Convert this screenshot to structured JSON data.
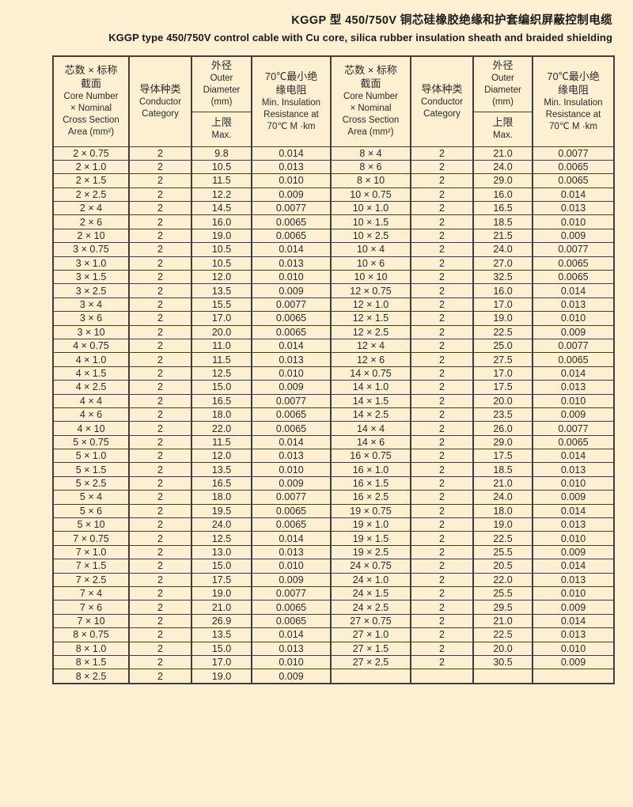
{
  "title": {
    "zh": "KGGP 型 450/750V 铜芯硅橡胶绝缘和护套编织屏蔽控制电缆",
    "en": "KGGP type 450/750V control cable with Cu core, silica rubber insulation sheath and braided shielding"
  },
  "table": {
    "headers": {
      "core": {
        "zh_line1": "芯数 × 标称",
        "zh_line2": "截面",
        "en_line1": "Core Number",
        "en_line2": "× Nominal",
        "en_line3": "Cross Section",
        "en_line4": "Area (mm²)"
      },
      "conductor": {
        "zh": "导体种类",
        "en_line1": "Conductor",
        "en_line2": "Category"
      },
      "diameter": {
        "zh": "外径",
        "en_line1": "Outer",
        "en_line2": "Diameter",
        "en_line3": "(mm)"
      },
      "limit": {
        "zh": "上限",
        "en": "Max."
      },
      "resistance": {
        "zh_line1": "70℃最小绝",
        "zh_line2": "缘电阻",
        "en_line1": "Min. Insulation",
        "en_line2": "Resistance at",
        "en_line3": "70℃ M ·km"
      }
    },
    "left_rows": [
      [
        "2 × 0.75",
        "2",
        "9.8",
        "0.014"
      ],
      [
        "2 × 1.0",
        "2",
        "10.5",
        "0.013"
      ],
      [
        "2 × 1.5",
        "2",
        "11.5",
        "0.010"
      ],
      [
        "2 × 2.5",
        "2",
        "12.2",
        "0.009"
      ],
      [
        "2 × 4",
        "2",
        "14.5",
        "0.0077"
      ],
      [
        "2 × 6",
        "2",
        "16.0",
        "0.0065"
      ],
      [
        "2 × 10",
        "2",
        "19.0",
        "0.0065"
      ],
      [
        "3 × 0.75",
        "2",
        "10.5",
        "0.014"
      ],
      [
        "3 × 1.0",
        "2",
        "10.5",
        "0.013"
      ],
      [
        "3 × 1.5",
        "2",
        "12.0",
        "0.010"
      ],
      [
        "3 × 2.5",
        "2",
        "13.5",
        "0.009"
      ],
      [
        "3 × 4",
        "2",
        "15.5",
        "0.0077"
      ],
      [
        "3 × 6",
        "2",
        "17.0",
        "0.0065"
      ],
      [
        "3 × 10",
        "2",
        "20.0",
        "0.0065"
      ],
      [
        "4 × 0.75",
        "2",
        "11.0",
        "0.014"
      ],
      [
        "4 × 1.0",
        "2",
        "11.5",
        "0.013"
      ],
      [
        "4 × 1.5",
        "2",
        "12.5",
        "0.010"
      ],
      [
        "4 × 2.5",
        "2",
        "15.0",
        "0.009"
      ],
      [
        "4 × 4",
        "2",
        "16.5",
        "0.0077"
      ],
      [
        "4 × 6",
        "2",
        "18.0",
        "0.0065"
      ],
      [
        "4 × 10",
        "2",
        "22.0",
        "0.0065"
      ],
      [
        "5 × 0.75",
        "2",
        "11.5",
        "0.014"
      ],
      [
        "5 × 1.0",
        "2",
        "12.0",
        "0.013"
      ],
      [
        "5 × 1.5",
        "2",
        "13.5",
        "0.010"
      ],
      [
        "5 × 2.5",
        "2",
        "16.5",
        "0.009"
      ],
      [
        "5 × 4",
        "2",
        "18.0",
        "0.0077"
      ],
      [
        "5 × 6",
        "2",
        "19.5",
        "0.0065"
      ],
      [
        "5 × 10",
        "2",
        "24.0",
        "0.0065"
      ],
      [
        "7 × 0.75",
        "2",
        "12.5",
        "0.014"
      ],
      [
        "7 × 1.0",
        "2",
        "13.0",
        "0.013"
      ],
      [
        "7 × 1.5",
        "2",
        "15.0",
        "0.010"
      ],
      [
        "7 × 2.5",
        "2",
        "17.5",
        "0.009"
      ],
      [
        "7 × 4",
        "2",
        "19.0",
        "0.0077"
      ],
      [
        "7 × 6",
        "2",
        "21.0",
        "0.0065"
      ],
      [
        "7 × 10",
        "2",
        "26.9",
        "0.0065"
      ],
      [
        "8 × 0.75",
        "2",
        "13.5",
        "0.014"
      ],
      [
        "8 × 1.0",
        "2",
        "15.0",
        "0.013"
      ],
      [
        "8 × 1.5",
        "2",
        "17.0",
        "0.010"
      ],
      [
        "8 × 2.5",
        "2",
        "19.0",
        "0.009"
      ]
    ],
    "right_rows": [
      [
        "8 × 4",
        "2",
        "21.0",
        "0.0077"
      ],
      [
        "8 × 6",
        "2",
        "24.0",
        "0.0065"
      ],
      [
        "8 × 10",
        "2",
        "29.0",
        "0.0065"
      ],
      [
        "10 × 0.75",
        "2",
        "16.0",
        "0.014"
      ],
      [
        "10 × 1.0",
        "2",
        "16.5",
        "0.013"
      ],
      [
        "10 × 1.5",
        "2",
        "18.5",
        "0.010"
      ],
      [
        "10 × 2.5",
        "2",
        "21.5",
        "0.009"
      ],
      [
        "10 × 4",
        "2",
        "24.0",
        "0.0077"
      ],
      [
        "10 × 6",
        "2",
        "27.0",
        "0.0065"
      ],
      [
        "10 × 10",
        "2",
        "32.5",
        "0.0065"
      ],
      [
        "12 × 0.75",
        "2",
        "16.0",
        "0.014"
      ],
      [
        "12 × 1.0",
        "2",
        "17.0",
        "0.013"
      ],
      [
        "12 × 1.5",
        "2",
        "19.0",
        "0.010"
      ],
      [
        "12 × 2.5",
        "2",
        "22.5",
        "0.009"
      ],
      [
        "12 × 4",
        "2",
        "25.0",
        "0.0077"
      ],
      [
        "12 × 6",
        "2",
        "27.5",
        "0.0065"
      ],
      [
        "14 × 0.75",
        "2",
        "17.0",
        "0.014"
      ],
      [
        "14 × 1.0",
        "2",
        "17.5",
        "0.013"
      ],
      [
        "14 × 1.5",
        "2",
        "20.0",
        "0.010"
      ],
      [
        "14 × 2.5",
        "2",
        "23.5",
        "0.009"
      ],
      [
        "14 × 4",
        "2",
        "26.0",
        "0.0077"
      ],
      [
        "14 × 6",
        "2",
        "29.0",
        "0.0065"
      ],
      [
        "16 × 0.75",
        "2",
        "17.5",
        "0.014"
      ],
      [
        "16 × 1.0",
        "2",
        "18.5",
        "0.013"
      ],
      [
        "16 × 1.5",
        "2",
        "21.0",
        "0.010"
      ],
      [
        "16 × 2.5",
        "2",
        "24.0",
        "0.009"
      ],
      [
        "19 × 0.75",
        "2",
        "18.0",
        "0.014"
      ],
      [
        "19 × 1.0",
        "2",
        "19.0",
        "0.013"
      ],
      [
        "19 × 1.5",
        "2",
        "22.5",
        "0.010"
      ],
      [
        "19 × 2.5",
        "2",
        "25.5",
        "0.009"
      ],
      [
        "24 × 0.75",
        "2",
        "20.5",
        "0.014"
      ],
      [
        "24 × 1.0",
        "2",
        "22.0",
        "0.013"
      ],
      [
        "24 × 1.5",
        "2",
        "25.5",
        "0.010"
      ],
      [
        "24 × 2.5",
        "2",
        "29.5",
        "0.009"
      ],
      [
        "27 × 0.75",
        "2",
        "21.0",
        "0.014"
      ],
      [
        "27 × 1.0",
        "2",
        "22.5",
        "0.013"
      ],
      [
        "27 × 1.5",
        "2",
        "20.0",
        "0.010"
      ],
      [
        "27 × 2.5",
        "2",
        "30.5",
        "0.009"
      ],
      [
        "",
        "",
        "",
        ""
      ]
    ]
  },
  "colors": {
    "page_background": "#fcefd2",
    "border": "#3e3e3e",
    "text": "#2b2b2b"
  }
}
